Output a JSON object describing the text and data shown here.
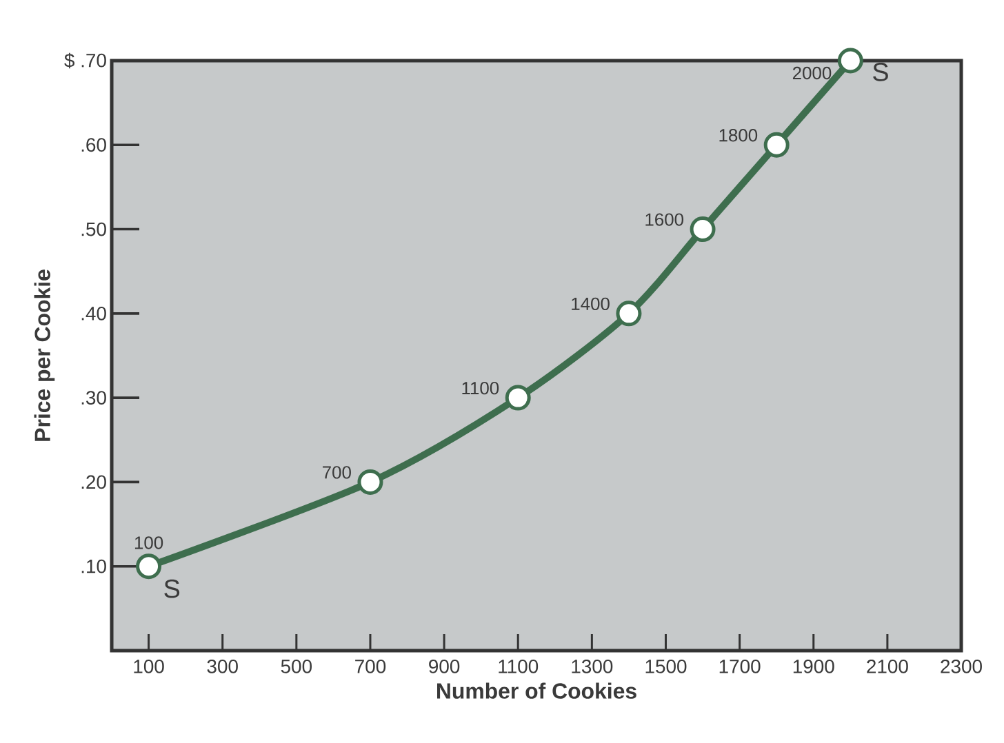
{
  "chart_data": {
    "type": "line",
    "xlabel": "Number of Cookies",
    "ylabel": "Price per Cookie",
    "x": [
      100,
      700,
      1100,
      1400,
      1600,
      1800,
      2000
    ],
    "series": [
      {
        "name": "S",
        "color": "#3e6e4e",
        "values": [
          0.1,
          0.2,
          0.3,
          0.4,
          0.5,
          0.6,
          0.7
        ]
      }
    ],
    "xlim": [
      0,
      2300
    ],
    "xticks": [
      100,
      300,
      500,
      700,
      900,
      1100,
      1300,
      1500,
      1700,
      1900,
      2100,
      2300
    ],
    "ylim": [
      0,
      0.7
    ],
    "yticks": [
      {
        "value": 0.1,
        "label": ".10"
      },
      {
        "value": 0.2,
        "label": ".20"
      },
      {
        "value": 0.3,
        "label": ".30"
      },
      {
        "value": 0.4,
        "label": ".40"
      },
      {
        "value": 0.5,
        "label": ".50"
      },
      {
        "value": 0.6,
        "label": ".60"
      },
      {
        "value": 0.7,
        "label": "$ .70"
      }
    ],
    "marker": "circle",
    "line_style": "solid",
    "annotations": [
      {
        "text": "100",
        "x": 100,
        "y": 0.1
      },
      {
        "text": "700",
        "x": 700,
        "y": 0.2
      },
      {
        "text": "1100",
        "x": 1100,
        "y": 0.3
      },
      {
        "text": "1400",
        "x": 1400,
        "y": 0.4
      },
      {
        "text": "1600",
        "x": 1600,
        "y": 0.5
      },
      {
        "text": "1800",
        "x": 1800,
        "y": 0.6
      },
      {
        "text": "2000",
        "x": 2000,
        "y": 0.7
      }
    ]
  }
}
